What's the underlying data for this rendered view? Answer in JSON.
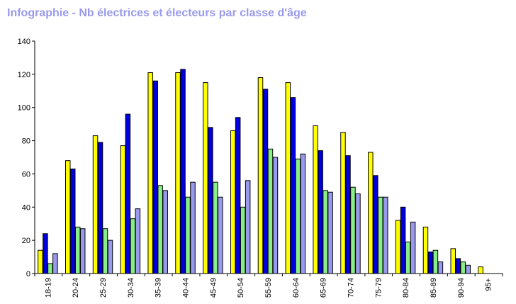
{
  "chart_data": {
    "type": "bar",
    "title": "Infographie - Nb électrices et électeurs par classe d'âge",
    "xlabel": "",
    "ylabel": "",
    "ylim": [
      0,
      140
    ],
    "yticks": [
      0,
      20,
      40,
      60,
      80,
      100,
      120,
      140
    ],
    "grid": false,
    "legend": "none",
    "categories": [
      "18-19",
      "20-24",
      "25-29",
      "30-34",
      "35-39",
      "40-44",
      "45-49",
      "50-54",
      "55-59",
      "60-64",
      "65-69",
      "70-74",
      "75-79",
      "80-84",
      "85-89",
      "90-94",
      "95+"
    ],
    "series": [
      {
        "color": "#ffff00",
        "values": [
          14,
          68,
          83,
          77,
          121,
          121,
          115,
          86,
          118,
          115,
          89,
          85,
          73,
          32,
          28,
          15,
          4
        ]
      },
      {
        "color": "#0000dd",
        "values": [
          24,
          63,
          79,
          96,
          116,
          123,
          88,
          94,
          111,
          106,
          74,
          71,
          59,
          40,
          13,
          9,
          0
        ]
      },
      {
        "color": "#88ee88",
        "values": [
          6,
          28,
          27,
          33,
          53,
          46,
          55,
          40,
          75,
          69,
          50,
          52,
          46,
          19,
          14,
          7,
          0
        ]
      },
      {
        "color": "#9999ee",
        "values": [
          12,
          27,
          20,
          39,
          50,
          55,
          46,
          56,
          70,
          72,
          49,
          48,
          46,
          31,
          7,
          5,
          0
        ]
      }
    ]
  }
}
